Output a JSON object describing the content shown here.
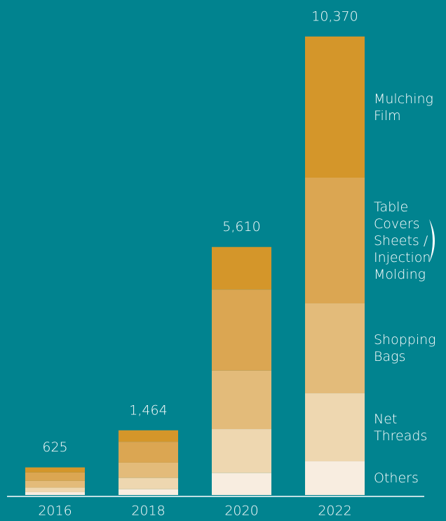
{
  "chart_data": {
    "type": "stacked-bar",
    "categories": [
      "2016",
      "2018",
      "2020",
      "2022"
    ],
    "totals": [
      625,
      1464,
      5610,
      10370
    ],
    "total_labels": [
      "625",
      "1,464",
      "5,610",
      "10,370"
    ],
    "series": [
      {
        "name": "Others",
        "color": "#f8ede0",
        "values": [
          64,
          129,
          497,
          762
        ]
      },
      {
        "name": "Net Threads",
        "color": "#eed7b0",
        "values": [
          102,
          258,
          995,
          1540
        ]
      },
      {
        "name": "Shopping Bags",
        "color": "#e3bb7a",
        "values": [
          153,
          344,
          1321,
          2033
        ]
      },
      {
        "name": "Table Covers Sheets / Injection Molding",
        "color": "#dba652",
        "values": [
          191,
          474,
          1836,
          2843
        ]
      },
      {
        "name": "Mulching Film",
        "color": "#d4962a",
        "values": [
          115,
          259,
          961,
          3192
        ]
      }
    ],
    "background": "#01838f"
  }
}
